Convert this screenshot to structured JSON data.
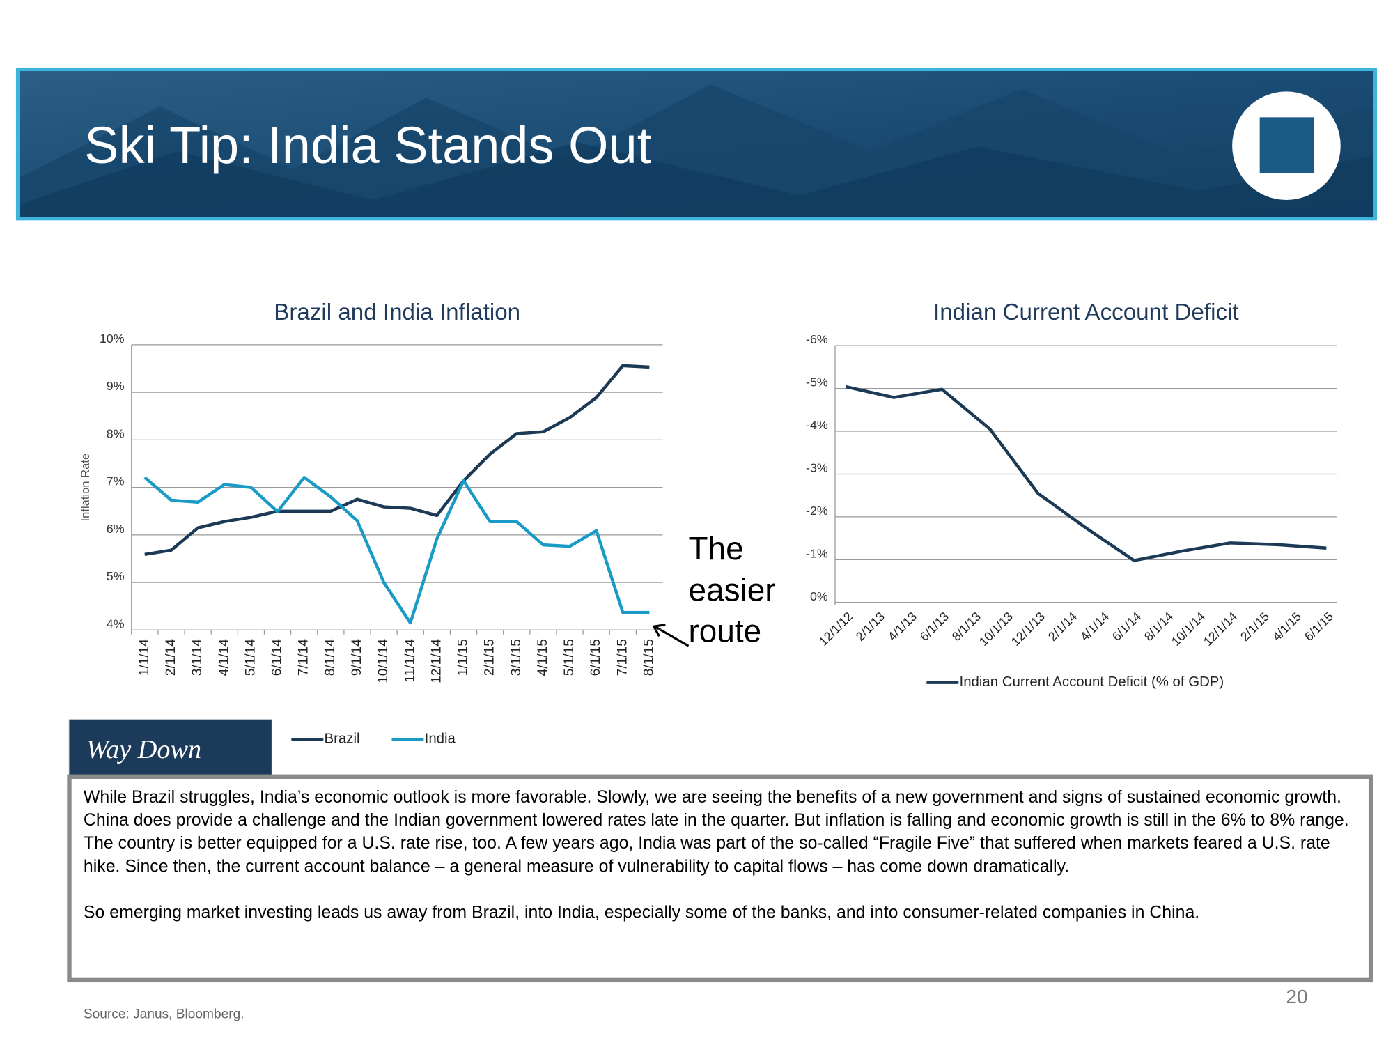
{
  "header": {
    "title": "Ski Tip: India Stands Out"
  },
  "chart_data": [
    {
      "type": "line",
      "title": "Brazil and India Inflation",
      "y_label": "Inflation Rate",
      "categories": [
        "1/1/14",
        "2/1/14",
        "3/1/14",
        "4/1/14",
        "5/1/14",
        "6/1/14",
        "7/1/14",
        "8/1/14",
        "9/1/14",
        "10/1/14",
        "11/1/14",
        "12/1/14",
        "1/1/15",
        "2/1/15",
        "3/1/15",
        "4/1/15",
        "5/1/15",
        "6/1/15",
        "7/1/15",
        "8/1/15"
      ],
      "series": [
        {
          "name": "Brazil",
          "color": "#1c3a56",
          "values": [
            5.59,
            5.68,
            6.15,
            6.28,
            6.37,
            6.5,
            6.5,
            6.5,
            6.75,
            6.59,
            6.56,
            6.41,
            7.14,
            7.7,
            8.13,
            8.17,
            8.47,
            8.89,
            9.56,
            9.53
          ]
        },
        {
          "name": "India",
          "color": "#1a9bc6",
          "values": [
            7.21,
            6.73,
            6.69,
            7.06,
            7.0,
            6.49,
            7.21,
            6.8,
            6.3,
            5.0,
            4.15,
            5.92,
            7.14,
            6.28,
            6.28,
            5.79,
            5.76,
            6.09,
            4.37,
            4.37
          ]
        }
      ],
      "ylim": [
        4,
        10
      ],
      "yticks": [
        {
          "value": 4,
          "label": "4%"
        },
        {
          "value": 5,
          "label": "5%"
        },
        {
          "value": 6,
          "label": "6%"
        },
        {
          "value": 7,
          "label": "7%"
        },
        {
          "value": 8,
          "label": "8%"
        },
        {
          "value": 9,
          "label": "9%"
        },
        {
          "value": 10,
          "label": "10%"
        }
      ],
      "grid": true,
      "legend": "bottom"
    },
    {
      "type": "line",
      "title": "Indian Current Account Deficit",
      "x": [
        "12/1/12",
        "3/1/13",
        "6/1/13",
        "9/1/13",
        "12/1/13",
        "3/1/14",
        "6/1/14",
        "9/1/14",
        "12/1/14",
        "3/1/15",
        "6/1/15"
      ],
      "xticks": [
        "12/1/12",
        "2/1/13",
        "4/1/13",
        "6/1/13",
        "8/1/13",
        "10/1/13",
        "12/1/13",
        "2/1/14",
        "4/1/14",
        "6/1/14",
        "8/1/14",
        "10/1/14",
        "12/1/14",
        "2/1/15",
        "4/1/15",
        "6/1/15"
      ],
      "series": [
        {
          "name": "Indian Current Account Deficit (% of GDP)",
          "color": "#1c3a56",
          "values": [
            -5.04,
            -4.79,
            -4.98,
            -4.05,
            -2.55,
            -1.74,
            -0.98,
            -1.2,
            -1.39,
            -1.35,
            -1.27
          ]
        }
      ],
      "ylim": [
        0,
        -6
      ],
      "yticks": [
        {
          "value": 0,
          "label": "0%"
        },
        {
          "value": -1,
          "label": "-1%"
        },
        {
          "value": -2,
          "label": "-2%"
        },
        {
          "value": -3,
          "label": "-3%"
        },
        {
          "value": -4,
          "label": "-4%"
        },
        {
          "value": -5,
          "label": "-5%"
        },
        {
          "value": -6,
          "label": "-6%"
        }
      ],
      "grid": true,
      "legend": "bottom"
    }
  ],
  "annotation": [
    "The",
    "easier",
    "route"
  ],
  "callout": {
    "label": "Way Down",
    "paragraphs": [
      "While Brazil struggles, India’s economic outlook is more favorable. Slowly, we are seeing the benefits of a new government and signs of sustained economic growth. China does provide a challenge and the Indian government lowered rates late in the quarter. But inflation is falling and economic growth is still in the 6% to 8% range. The country is better equipped for a U.S. rate rise, too. A few years ago, India was part of the so-called “Fragile Five” that suffered when markets feared a U.S. rate hike. Since then, the current account balance – a general measure of vulnerability to capital flows – has come down dramatically.",
      "So emerging market investing leads us away from Brazil, into India, especially some of the banks, and into consumer-related companies in China."
    ]
  },
  "page_number": "20",
  "source": "Source: Janus, Bloomberg."
}
